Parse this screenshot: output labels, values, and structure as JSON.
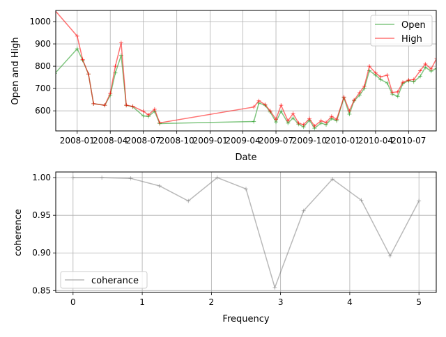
{
  "chart_data": [
    {
      "type": "line",
      "xlabel": "Date",
      "ylabel": "Open and High",
      "x_ticks": [
        "2008-01",
        "2008-04",
        "2008-07",
        "2008-10",
        "2009-01",
        "2009-04",
        "2009-07",
        "2009-10",
        "2010-01",
        "2010-04",
        "2010-07"
      ],
      "y_ticks": [
        600,
        700,
        800,
        900,
        1000
      ],
      "xlim": [
        "2007-11-03",
        "2010-09-15"
      ],
      "ylim": [
        510,
        1050
      ],
      "grid": true,
      "legend_position": "upper right",
      "series": [
        {
          "name": "Open",
          "color": "#2ca02c",
          "alpha": 0.6,
          "marker": "+",
          "points": [
            {
              "x": "2007-11-01",
              "y": 768
            },
            {
              "x": "2008-01-01",
              "y": 878
            },
            {
              "x": "2008-01-16",
              "y": 827
            },
            {
              "x": "2008-02-01",
              "y": 765
            },
            {
              "x": "2008-02-15",
              "y": 632
            },
            {
              "x": "2008-03-17",
              "y": 625
            },
            {
              "x": "2008-04-01",
              "y": 670
            },
            {
              "x": "2008-04-15",
              "y": 770
            },
            {
              "x": "2008-05-01",
              "y": 848
            },
            {
              "x": "2008-05-15",
              "y": 625
            },
            {
              "x": "2008-06-02",
              "y": 618
            },
            {
              "x": "2008-07-01",
              "y": 577
            },
            {
              "x": "2008-07-15",
              "y": 575
            },
            {
              "x": "2008-08-01",
              "y": 598
            },
            {
              "x": "2008-08-15",
              "y": 543
            },
            {
              "x": "2009-05-01",
              "y": 552
            },
            {
              "x": "2009-05-15",
              "y": 635
            },
            {
              "x": "2009-06-01",
              "y": 625
            },
            {
              "x": "2009-06-15",
              "y": 595
            },
            {
              "x": "2009-07-01",
              "y": 550
            },
            {
              "x": "2009-07-15",
              "y": 598
            },
            {
              "x": "2009-08-03",
              "y": 545
            },
            {
              "x": "2009-08-17",
              "y": 568
            },
            {
              "x": "2009-09-01",
              "y": 540
            },
            {
              "x": "2009-09-15",
              "y": 528
            },
            {
              "x": "2009-10-01",
              "y": 558
            },
            {
              "x": "2009-10-15",
              "y": 522
            },
            {
              "x": "2009-11-02",
              "y": 545
            },
            {
              "x": "2009-11-16",
              "y": 538
            },
            {
              "x": "2009-12-01",
              "y": 565
            },
            {
              "x": "2009-12-15",
              "y": 555
            },
            {
              "x": "2010-01-04",
              "y": 658
            },
            {
              "x": "2010-01-19",
              "y": 585
            },
            {
              "x": "2010-02-01",
              "y": 645
            },
            {
              "x": "2010-02-16",
              "y": 670
            },
            {
              "x": "2010-03-01",
              "y": 700
            },
            {
              "x": "2010-03-15",
              "y": 780
            },
            {
              "x": "2010-04-01",
              "y": 760
            },
            {
              "x": "2010-04-15",
              "y": 740
            },
            {
              "x": "2010-05-03",
              "y": 725
            },
            {
              "x": "2010-05-17",
              "y": 675
            },
            {
              "x": "2010-06-01",
              "y": 665
            },
            {
              "x": "2010-06-15",
              "y": 722
            },
            {
              "x": "2010-07-01",
              "y": 735
            },
            {
              "x": "2010-07-15",
              "y": 730
            },
            {
              "x": "2010-08-02",
              "y": 755
            },
            {
              "x": "2010-08-16",
              "y": 795
            },
            {
              "x": "2010-09-01",
              "y": 778
            },
            {
              "x": "2010-09-16",
              "y": 790
            }
          ]
        },
        {
          "name": "High",
          "color": "#ff0000",
          "alpha": 0.55,
          "marker": "+",
          "points": [
            {
              "x": "2007-11-01",
              "y": 1050
            },
            {
              "x": "2008-01-01",
              "y": 935
            },
            {
              "x": "2008-01-16",
              "y": 830
            },
            {
              "x": "2008-02-01",
              "y": 765
            },
            {
              "x": "2008-02-15",
              "y": 632
            },
            {
              "x": "2008-03-17",
              "y": 625
            },
            {
              "x": "2008-04-01",
              "y": 678
            },
            {
              "x": "2008-04-15",
              "y": 800
            },
            {
              "x": "2008-05-01",
              "y": 905
            },
            {
              "x": "2008-05-15",
              "y": 625
            },
            {
              "x": "2008-06-02",
              "y": 620
            },
            {
              "x": "2008-07-01",
              "y": 598
            },
            {
              "x": "2008-07-15",
              "y": 582
            },
            {
              "x": "2008-08-01",
              "y": 607
            },
            {
              "x": "2008-08-15",
              "y": 546
            },
            {
              "x": "2009-05-01",
              "y": 617
            },
            {
              "x": "2009-05-15",
              "y": 645
            },
            {
              "x": "2009-06-01",
              "y": 628
            },
            {
              "x": "2009-06-15",
              "y": 600
            },
            {
              "x": "2009-07-01",
              "y": 562
            },
            {
              "x": "2009-07-15",
              "y": 625
            },
            {
              "x": "2009-08-03",
              "y": 555
            },
            {
              "x": "2009-08-17",
              "y": 588
            },
            {
              "x": "2009-09-01",
              "y": 545
            },
            {
              "x": "2009-09-15",
              "y": 538
            },
            {
              "x": "2009-10-01",
              "y": 565
            },
            {
              "x": "2009-10-15",
              "y": 532
            },
            {
              "x": "2009-11-02",
              "y": 555
            },
            {
              "x": "2009-11-16",
              "y": 548
            },
            {
              "x": "2009-12-01",
              "y": 575
            },
            {
              "x": "2009-12-15",
              "y": 562
            },
            {
              "x": "2010-01-04",
              "y": 662
            },
            {
              "x": "2010-01-19",
              "y": 600
            },
            {
              "x": "2010-02-01",
              "y": 648
            },
            {
              "x": "2010-02-16",
              "y": 682
            },
            {
              "x": "2010-03-01",
              "y": 710
            },
            {
              "x": "2010-03-15",
              "y": 800
            },
            {
              "x": "2010-04-01",
              "y": 770
            },
            {
              "x": "2010-04-15",
              "y": 752
            },
            {
              "x": "2010-05-03",
              "y": 760
            },
            {
              "x": "2010-05-17",
              "y": 683
            },
            {
              "x": "2010-06-01",
              "y": 685
            },
            {
              "x": "2010-06-15",
              "y": 728
            },
            {
              "x": "2010-07-01",
              "y": 738
            },
            {
              "x": "2010-07-15",
              "y": 740
            },
            {
              "x": "2010-08-02",
              "y": 780
            },
            {
              "x": "2010-08-16",
              "y": 810
            },
            {
              "x": "2010-09-01",
              "y": 788
            },
            {
              "x": "2010-09-16",
              "y": 835
            }
          ]
        }
      ]
    },
    {
      "type": "line",
      "xlabel": "Frequency",
      "ylabel": "coherence",
      "x_ticks": [
        0,
        1,
        2,
        3,
        4,
        5
      ],
      "y_ticks": [
        0.85,
        0.9,
        0.95,
        1.0
      ],
      "xlim": [
        -0.25,
        5.25
      ],
      "ylim": [
        0.8475,
        1.0075
      ],
      "grid": true,
      "legend_position": "lower left",
      "series": [
        {
          "name": "coherance",
          "color": "#808080",
          "alpha": 0.55,
          "marker": "+",
          "x": [
            0.0,
            0.4167,
            0.8333,
            1.25,
            1.6667,
            2.0833,
            2.5,
            2.9167,
            3.3333,
            3.75,
            4.1667,
            4.5833,
            5.0
          ],
          "y": [
            1.0,
            1.0,
            0.999,
            0.989,
            0.969,
            1.0,
            0.985,
            0.854,
            0.956,
            0.998,
            0.97,
            0.896,
            0.969
          ]
        }
      ]
    }
  ]
}
